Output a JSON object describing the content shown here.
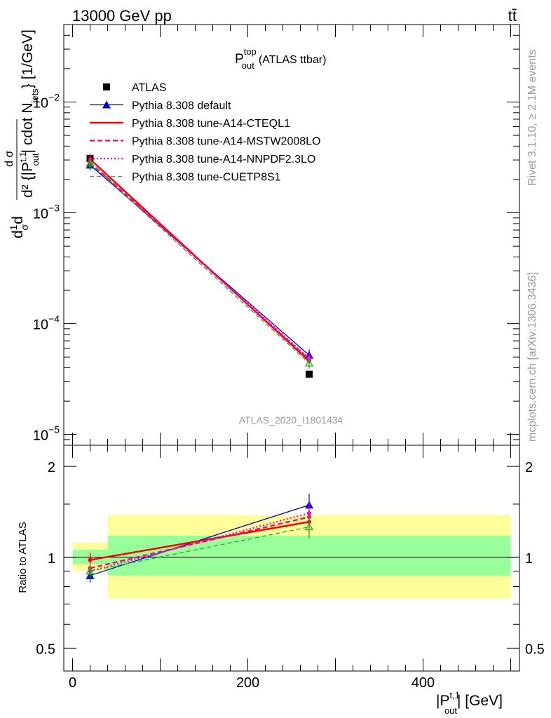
{
  "header": {
    "left": "13000 GeV pp",
    "right": "tt̄"
  },
  "side_labels": {
    "rivet": "Rivet 3.1.10, ≥ 2.1M events",
    "mcplots": "mcplots.cern.ch [arXiv:1306.3436]"
  },
  "colors": {
    "atlas": "#000000",
    "default": "#0000cc",
    "cteql1": "#ff0000",
    "mstw": "#ff0066",
    "nnpdf": "#ff00cc",
    "cuetp": "#22aa22",
    "band_stat": "#99ff99",
    "band_total": "#ffff99"
  },
  "chart_data": [
    {
      "type": "line",
      "title": "P_out^top (ATLAS ttbar)",
      "title_main": "P",
      "title_sup": "top",
      "title_sub": "out",
      "title_rest": "(ATLAS ttbar)",
      "analysis_label": "ATLAS_2020_I1801434",
      "ylabel": "d1/σ dσ/d²{|P_out^t,1| cdot N_jets} [1/GeV]",
      "ylabel_parts": {
        "a": "d",
        "b": "1",
        "c": "σ",
        "d": "d",
        "e": "d² {|P",
        "f": "t,1",
        "g": "out",
        "h": "| cdot N",
        "i": "jets",
        "j": "} [1/GeV]",
        "k": "d σ",
        "l": "jets"
      },
      "yscale": "log",
      "ylim": [
        8e-06,
        0.05
      ],
      "yticks": [
        {
          "value": 0.01,
          "base": "10",
          "exp": "−2"
        },
        {
          "value": 0.001,
          "base": "10",
          "exp": "−3"
        },
        {
          "value": 0.0001,
          "base": "10",
          "exp": "−4"
        },
        {
          "value": 1e-05,
          "base": "10",
          "exp": "−5"
        }
      ],
      "xlim": [
        -10,
        510
      ],
      "legend_position": "top-left",
      "x": [
        20,
        270
      ],
      "series": [
        {
          "name": "ATLAS",
          "key": "atlas",
          "values": [
            0.0031,
            3.5e-05
          ],
          "marker": "square"
        },
        {
          "name": "Pythia 8.308 default",
          "key": "default",
          "values": [
            0.0027,
            5.2e-05
          ],
          "marker": "triangle"
        },
        {
          "name": "Pythia 8.308 tune-A14-CTEQL1",
          "key": "cteql1",
          "values": [
            0.00305,
            4.6e-05
          ]
        },
        {
          "name": "Pythia 8.308 tune-A14-MSTW2008LO",
          "key": "mstw",
          "values": [
            0.00285,
            4.75e-05
          ]
        },
        {
          "name": "Pythia 8.308 tune-A14-NNPDF2.3LO",
          "key": "nnpdf",
          "values": [
            0.0028,
            4.9e-05
          ]
        },
        {
          "name": "Pythia 8.308 tune-CUETP8S1",
          "key": "cuetp",
          "values": [
            0.0028,
            4.4e-05
          ]
        }
      ]
    },
    {
      "type": "line",
      "ylabel": "Ratio to ATLAS",
      "xlabel": "|P_out^t,1| [GeV]",
      "xlabel_parts": {
        "a": "|P",
        "b": "t,1",
        "c": "out",
        "d": "| [GeV]"
      },
      "xlim": [
        -10,
        510
      ],
      "ylim": [
        0.42,
        2.35
      ],
      "yscale": "log",
      "yticks": [
        0.5,
        1,
        2
      ],
      "xticks": [
        0,
        200,
        400
      ],
      "bands": [
        {
          "x0": 0,
          "x1": 40,
          "stat": [
            0.95,
            1.06
          ],
          "total": [
            0.9,
            1.12
          ]
        },
        {
          "x0": 40,
          "x1": 500,
          "stat": [
            0.87,
            1.18
          ],
          "total": [
            0.73,
            1.38
          ]
        }
      ],
      "x": [
        20,
        270
      ],
      "series": [
        {
          "name": "Pythia 8.308 default",
          "key": "default",
          "values": [
            0.87,
            1.49
          ]
        },
        {
          "name": "Pythia 8.308 tune-A14-CTEQL1",
          "key": "cteql1",
          "values": [
            0.98,
            1.31
          ]
        },
        {
          "name": "Pythia 8.308 tune-A14-MSTW2008LO",
          "key": "mstw",
          "values": [
            0.92,
            1.36
          ]
        },
        {
          "name": "Pythia 8.308 tune-A14-NNPDF2.3LO",
          "key": "nnpdf",
          "values": [
            0.9,
            1.4
          ]
        },
        {
          "name": "Pythia 8.308 tune-CUETP8S1",
          "key": "cuetp",
          "values": [
            0.9,
            1.26
          ]
        }
      ]
    }
  ]
}
